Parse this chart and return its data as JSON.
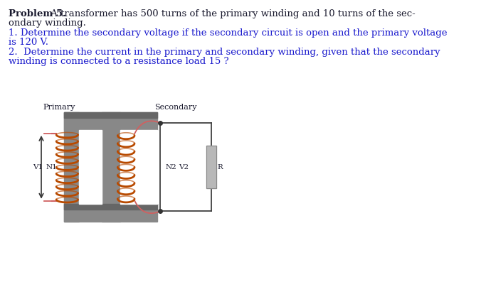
{
  "bg_color": "#ffffff",
  "text_color": "#1a1a2e",
  "blue_color": "#1a1acd",
  "core_color": "#909090",
  "core_dark": "#707070",
  "coil_color": "#b84a00",
  "wire_color": "#d06060",
  "resistor_color": "#b8b8b8",
  "circuit_line_color": "#404040",
  "problem_bold": "Problem 5.",
  "problem_rest": " A transformer has 500 turns of the primary winding and 10 turns of the sec-",
  "problem_cont": "ondary winding.",
  "q1_line1": "1. Determine the secondary voltage if the secondary circuit is open and the primary voltage",
  "q1_line2": "is 120 V.",
  "q2_line1": "2.  Determine the current in the primary and secondary winding, given that the secondary",
  "q2_line2": "winding is connected to a resistance load 15 ?",
  "label_primary": "Primary",
  "label_secondary": "Secondary",
  "label_v1": "V1",
  "label_n1": "N1",
  "label_n2": "N2",
  "label_v2": "V2",
  "label_r": "R"
}
